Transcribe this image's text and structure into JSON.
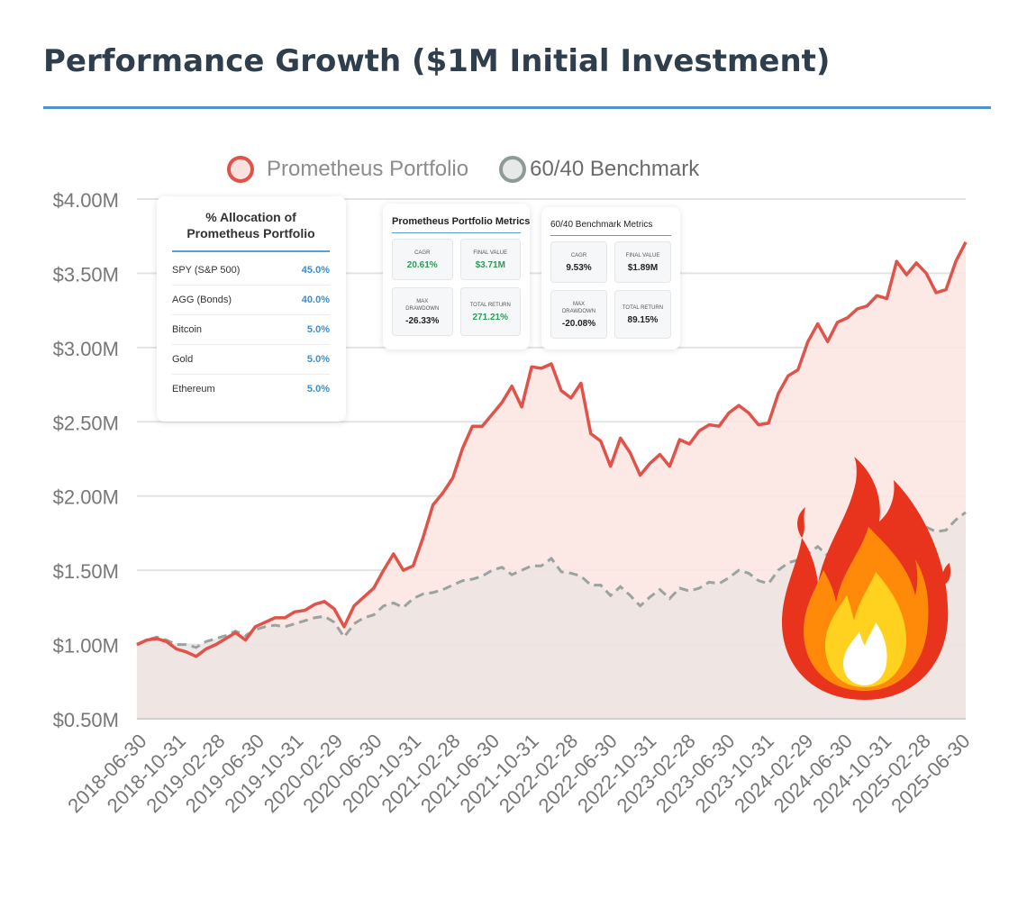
{
  "page": {
    "title": "Performance Growth ($1M Initial Investment)"
  },
  "colors": {
    "accent_rule": "#4f94c7",
    "portfolio_line": "#e0534a",
    "portfolio_fill": "#fbe4e1",
    "benchmark_line": "#9aa3a0",
    "benchmark_fill": "#ece4e2",
    "metric_positive": "#2e9b57",
    "allocation_value": "#3a8fd0"
  },
  "allocation": {
    "title": "% Allocation of Prometheus Portfolio",
    "items": [
      {
        "name": "SPY (S&P 500)",
        "value": "45.0%"
      },
      {
        "name": "AGG (Bonds)",
        "value": "40.0%"
      },
      {
        "name": "Bitcoin",
        "value": "5.0%"
      },
      {
        "name": "Gold",
        "value": "5.0%"
      },
      {
        "name": "Ethereum",
        "value": "5.0%"
      }
    ]
  },
  "portfolio_metrics": {
    "title": "Prometheus Portfolio Metrics",
    "cagr_label": "CAGR",
    "cagr": "20.61%",
    "final_label": "FINAL VALUE",
    "final": "$3.71M",
    "dd_label": "MAX DRAWDOWN",
    "dd": "-26.33%",
    "tr_label": "TOTAL RETURN",
    "tr": "271.21%"
  },
  "benchmark_metrics": {
    "title": "60/40 Benchmark Metrics",
    "cagr_label": "CAGR",
    "cagr": "9.53%",
    "final_label": "FINAL VALUE",
    "final": "$1.89M",
    "dd_label": "MAX DRAWDOWN",
    "dd": "-20.08%",
    "tr_label": "TOTAL RETURN",
    "tr": "89.15%"
  },
  "fire_icon": "fire-emoji",
  "chart_data": {
    "type": "area",
    "title": "",
    "xlabel": "",
    "ylabel": "",
    "ylim": [
      0.5,
      4.0
    ],
    "y_ticks": [
      "$0.50M",
      "$1.00M",
      "$1.50M",
      "$2.00M",
      "$2.50M",
      "$3.00M",
      "$3.50M",
      "$4.00M"
    ],
    "y_tick_values": [
      0.5,
      1.0,
      1.5,
      2.0,
      2.5,
      3.0,
      3.5,
      4.0
    ],
    "x_tick_labels": [
      "2018-06-30",
      "2018-10-31",
      "2019-02-28",
      "2019-06-30",
      "2019-10-31",
      "2020-02-29",
      "2020-06-30",
      "2020-10-31",
      "2021-02-28",
      "2021-06-30",
      "2021-10-31",
      "2022-02-28",
      "2022-06-30",
      "2022-10-31",
      "2023-02-28",
      "2023-06-30",
      "2023-10-31",
      "2024-02-29",
      "2024-06-30",
      "2024-10-31",
      "2025-02-28",
      "2025-06-30"
    ],
    "grid": true,
    "legend": "top",
    "series": [
      {
        "name": "Prometheus Portfolio",
        "style": "solid",
        "values": [
          1.0,
          1.03,
          1.04,
          1.02,
          0.97,
          0.95,
          0.92,
          0.97,
          1.0,
          1.04,
          1.08,
          1.03,
          1.12,
          1.15,
          1.18,
          1.18,
          1.22,
          1.23,
          1.27,
          1.29,
          1.24,
          1.12,
          1.26,
          1.32,
          1.38,
          1.5,
          1.61,
          1.5,
          1.53,
          1.72,
          1.94,
          2.02,
          2.12,
          2.32,
          2.47,
          2.47,
          2.55,
          2.63,
          2.74,
          2.6,
          2.87,
          2.86,
          2.89,
          2.71,
          2.66,
          2.76,
          2.42,
          2.37,
          2.2,
          2.39,
          2.29,
          2.14,
          2.22,
          2.28,
          2.2,
          2.38,
          2.35,
          2.44,
          2.48,
          2.47,
          2.56,
          2.61,
          2.56,
          2.48,
          2.49,
          2.69,
          2.81,
          2.85,
          3.04,
          3.16,
          3.04,
          3.17,
          3.2,
          3.26,
          3.28,
          3.35,
          3.33,
          3.58,
          3.49,
          3.57,
          3.5,
          3.37,
          3.39,
          3.58,
          3.71
        ]
      },
      {
        "name": "60/40 Benchmark",
        "style": "dashed",
        "values": [
          1.0,
          1.03,
          1.05,
          1.03,
          1.0,
          1.0,
          0.98,
          1.02,
          1.04,
          1.06,
          1.09,
          1.06,
          1.1,
          1.12,
          1.13,
          1.12,
          1.14,
          1.16,
          1.18,
          1.19,
          1.15,
          1.05,
          1.14,
          1.18,
          1.2,
          1.26,
          1.28,
          1.25,
          1.31,
          1.34,
          1.35,
          1.37,
          1.4,
          1.43,
          1.44,
          1.46,
          1.5,
          1.52,
          1.47,
          1.5,
          1.53,
          1.53,
          1.58,
          1.49,
          1.48,
          1.46,
          1.4,
          1.4,
          1.33,
          1.39,
          1.33,
          1.26,
          1.32,
          1.37,
          1.31,
          1.38,
          1.36,
          1.38,
          1.42,
          1.41,
          1.45,
          1.5,
          1.48,
          1.43,
          1.41,
          1.5,
          1.55,
          1.57,
          1.61,
          1.66,
          1.6,
          1.66,
          1.68,
          1.71,
          1.72,
          1.77,
          1.76,
          1.83,
          1.81,
          1.83,
          1.79,
          1.76,
          1.77,
          1.84,
          1.89
        ]
      }
    ]
  }
}
